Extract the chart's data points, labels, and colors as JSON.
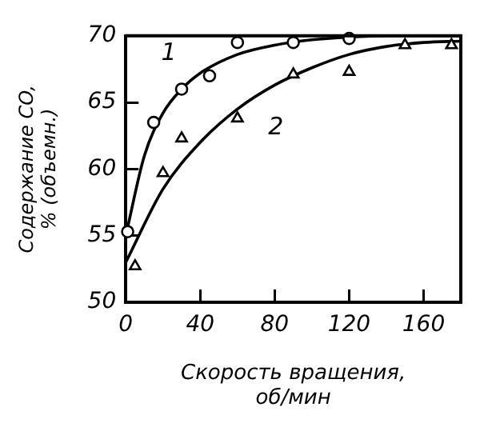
{
  "chart_data": {
    "type": "scatter",
    "xlabel": "Скорость вращения, об/мин",
    "ylabel": "Содержание CO, % (объемн.)",
    "xlim": [
      0,
      180
    ],
    "xticks": [
      0,
      40,
      80,
      120,
      160
    ],
    "ylim": [
      50,
      70
    ],
    "yticks": [
      50,
      55,
      60,
      65,
      70
    ],
    "grid": false,
    "legend": false,
    "series": [
      {
        "marker": "circle",
        "color": "#000000",
        "x": [
          1,
          15,
          30,
          45,
          60,
          90,
          120
        ],
        "values": [
          55.3,
          63.5,
          66,
          67,
          69.5,
          69.5,
          69.8
        ]
      },
      {
        "marker": "triangle",
        "color": "#000000",
        "x": [
          5,
          20,
          30,
          60,
          90,
          120,
          150,
          175
        ],
        "values": [
          52.7,
          59.7,
          62.3,
          63.8,
          67.1,
          67.3,
          69.3,
          69.3
        ]
      },
      {
        "type": "line",
        "name": "1",
        "marker": "none",
        "color": "#000000",
        "x": [
          0,
          10,
          20,
          30,
          40,
          60,
          80,
          100,
          120,
          140,
          180
        ],
        "values": [
          55,
          61,
          64.2,
          66,
          67.2,
          68.6,
          69.3,
          69.7,
          69.9,
          70,
          70
        ]
      },
      {
        "type": "line",
        "name": "2",
        "marker": "none",
        "color": "#000000",
        "x": [
          0,
          20,
          40,
          60,
          80,
          100,
          120,
          140,
          160,
          180
        ],
        "values": [
          53,
          58.5,
          62,
          64.5,
          66.3,
          67.6,
          68.6,
          69.2,
          69.5,
          69.6
        ]
      }
    ]
  }
}
